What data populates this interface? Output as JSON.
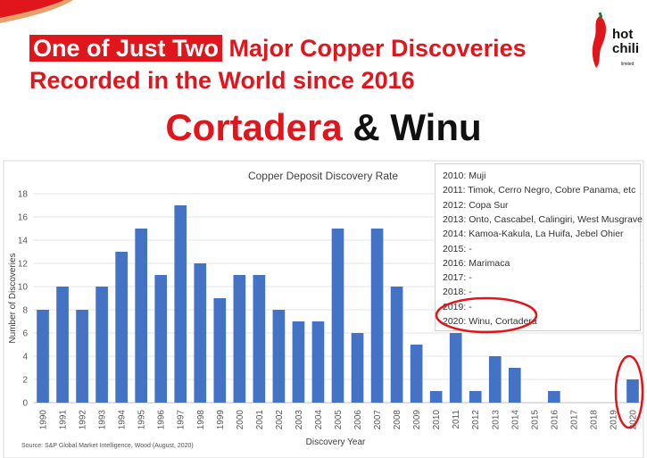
{
  "header": {
    "highlight": "One of Just Two",
    "line1_rest": " Major Copper Discoveries",
    "line2": "Recorded in the World since 2016",
    "title_red": "Cortadera",
    "title_rest": " & Winu"
  },
  "logo": {
    "line1": "hot",
    "line2": "chili",
    "line3": "limited"
  },
  "source_note": "Source: S&P Global Market Intelligence, Wood (August, 2020)",
  "colors": {
    "brand_red": "#e1161c",
    "bar": "#4472c4",
    "circle": "#e1161c"
  },
  "chart_data": {
    "type": "bar",
    "title": "Copper Deposit Discovery Rate",
    "xlabel": "Discovery Year",
    "ylabel": "Number of Discoveries",
    "categories": [
      "1990",
      "1991",
      "1992",
      "1993",
      "1994",
      "1995",
      "1996",
      "1997",
      "1998",
      "1999",
      "2000",
      "2001",
      "2002",
      "2003",
      "2004",
      "2005",
      "2006",
      "2007",
      "2008",
      "2009",
      "2010",
      "2011",
      "2012",
      "2013",
      "2014",
      "2015",
      "2016",
      "2017",
      "2018",
      "2019",
      "2020"
    ],
    "values": [
      8,
      10,
      8,
      10,
      13,
      15,
      11,
      17,
      12,
      9,
      11,
      11,
      8,
      7,
      7,
      15,
      6,
      15,
      10,
      5,
      1,
      6,
      1,
      4,
      3,
      0,
      1,
      0,
      0,
      0,
      2
    ],
    "ylim": [
      0,
      18
    ],
    "yticks": [
      0,
      2,
      4,
      6,
      8,
      10,
      12,
      14,
      16,
      18
    ],
    "grid": true,
    "annotations": [
      "2010: Muji",
      "2011: Timok, Cerro Negro, Cobre Panama, etc",
      "2012: Copa Sur",
      "2013: Onto, Cascabel, Calingiri, West Musgrave",
      "2014: Kamoa-Kakula, La Huifa, Jebel Ohier",
      "2015: -",
      "2016: Marimaca",
      "2017: -",
      "2018: -",
      "2019: -",
      "2020: Winu, Cortadera"
    ]
  }
}
